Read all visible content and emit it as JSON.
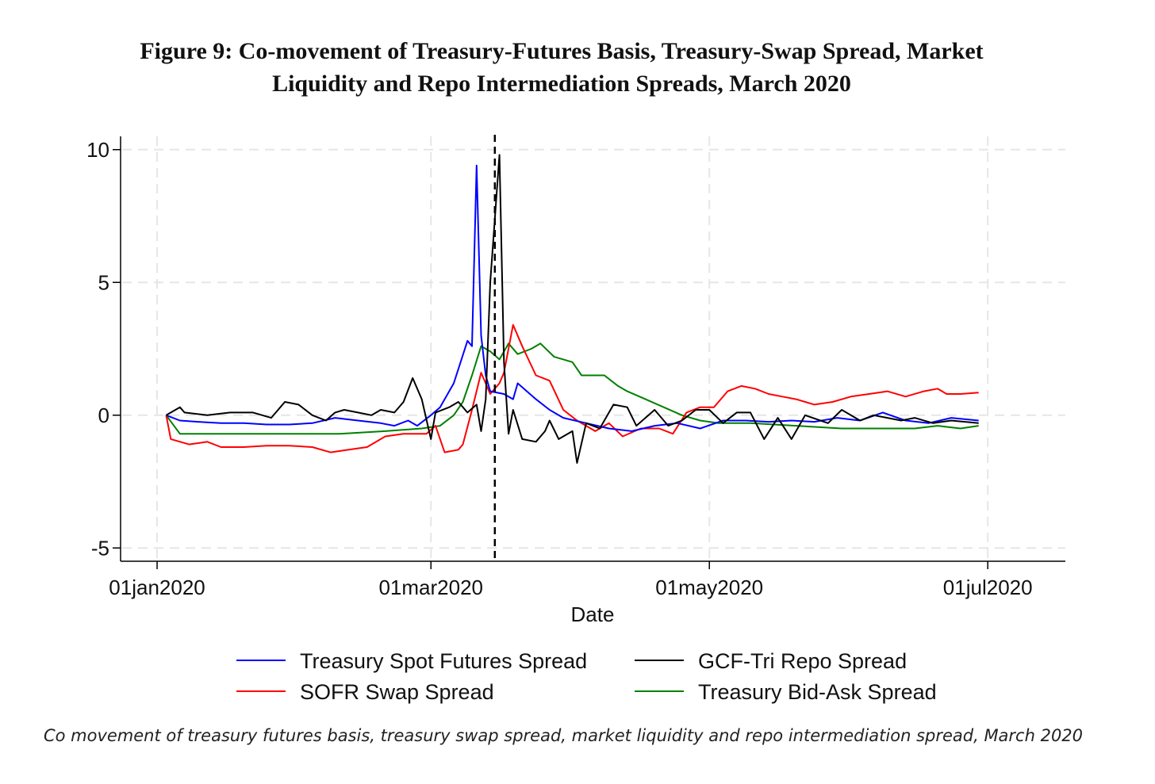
{
  "figure": {
    "title_line1": "Figure 9: Co-movement of Treasury-Futures Basis, Treasury-Swap Spread, Market",
    "title_line2": "Liquidity and Repo Intermediation Spreads, March 2020",
    "caption": "Co movement of treasury futures basis, treasury swap spread, market liquidity and repo intermediation spread, March 2020"
  },
  "chart_data": {
    "type": "line",
    "title": "Figure 9: Co-movement of Treasury-Futures Basis, Treasury-Swap Spread, Market Liquidity and Repo Intermediation Spreads, March 2020",
    "xlabel": "Date",
    "ylabel": "",
    "x_tick_labels": [
      "01jan2020",
      "01mar2020",
      "01may2020",
      "01jul2020"
    ],
    "x_tick_dates": [
      "2020-01-01",
      "2020-03-01",
      "2020-05-01",
      "2020-07-01"
    ],
    "y_tick_labels": [
      "-5",
      "0",
      "5",
      "10"
    ],
    "y_ticks": [
      -5,
      0,
      5,
      10
    ],
    "xlim": [
      "2019-12-24",
      "2020-07-18"
    ],
    "ylim": [
      -5.5,
      10.5
    ],
    "grid": true,
    "legend_position": "bottom",
    "vline_date": "2020-03-15",
    "series": [
      {
        "name": "Treasury Spot Futures Spread",
        "color": "#0000ff",
        "points": [
          [
            "2020-01-03",
            0
          ],
          [
            "2020-01-06",
            -0.2
          ],
          [
            "2020-01-10",
            -0.25
          ],
          [
            "2020-01-15",
            -0.3
          ],
          [
            "2020-01-20",
            -0.3
          ],
          [
            "2020-01-25",
            -0.35
          ],
          [
            "2020-01-30",
            -0.35
          ],
          [
            "2020-02-04",
            -0.3
          ],
          [
            "2020-02-09",
            -0.1
          ],
          [
            "2020-02-14",
            -0.2
          ],
          [
            "2020-02-19",
            -0.3
          ],
          [
            "2020-02-22",
            -0.4
          ],
          [
            "2020-02-25",
            -0.2
          ],
          [
            "2020-02-27",
            -0.4
          ],
          [
            "2020-03-01",
            0
          ],
          [
            "2020-03-03",
            0.3
          ],
          [
            "2020-03-06",
            1.2
          ],
          [
            "2020-03-09",
            2.8
          ],
          [
            "2020-03-10",
            2.6
          ],
          [
            "2020-03-11",
            9.4
          ],
          [
            "2020-03-12",
            3.0
          ],
          [
            "2020-03-13",
            1.5
          ],
          [
            "2020-03-14",
            0.9
          ],
          [
            "2020-03-17",
            0.8
          ],
          [
            "2020-03-19",
            0.6
          ],
          [
            "2020-03-20",
            1.2
          ],
          [
            "2020-03-24",
            0.6
          ],
          [
            "2020-03-27",
            0.2
          ],
          [
            "2020-03-30",
            -0.1
          ],
          [
            "2020-04-04",
            -0.3
          ],
          [
            "2020-04-09",
            -0.5
          ],
          [
            "2020-04-14",
            -0.6
          ],
          [
            "2020-04-19",
            -0.4
          ],
          [
            "2020-04-24",
            -0.3
          ],
          [
            "2020-04-29",
            -0.5
          ],
          [
            "2020-05-04",
            -0.2
          ],
          [
            "2020-05-09",
            -0.2
          ],
          [
            "2020-05-14",
            -0.25
          ],
          [
            "2020-05-19",
            -0.2
          ],
          [
            "2020-05-24",
            -0.25
          ],
          [
            "2020-05-29",
            -0.1
          ],
          [
            "2020-06-03",
            -0.2
          ],
          [
            "2020-06-08",
            0.1
          ],
          [
            "2020-06-13",
            -0.2
          ],
          [
            "2020-06-18",
            -0.3
          ],
          [
            "2020-06-23",
            -0.1
          ],
          [
            "2020-06-29",
            -0.2
          ]
        ]
      },
      {
        "name": "GCF-Tri Repo Spread",
        "color": "#000000",
        "points": [
          [
            "2020-01-03",
            0
          ],
          [
            "2020-01-06",
            0.3
          ],
          [
            "2020-01-07",
            0.1
          ],
          [
            "2020-01-12",
            0.0
          ],
          [
            "2020-01-17",
            0.1
          ],
          [
            "2020-01-22",
            0.1
          ],
          [
            "2020-01-26",
            -0.1
          ],
          [
            "2020-01-29",
            0.5
          ],
          [
            "2020-02-01",
            0.4
          ],
          [
            "2020-02-04",
            0.0
          ],
          [
            "2020-02-07",
            -0.2
          ],
          [
            "2020-02-09",
            0.1
          ],
          [
            "2020-02-11",
            0.2
          ],
          [
            "2020-02-14",
            0.1
          ],
          [
            "2020-02-17",
            0.0
          ],
          [
            "2020-02-19",
            0.2
          ],
          [
            "2020-02-22",
            0.1
          ],
          [
            "2020-02-24",
            0.5
          ],
          [
            "2020-02-26",
            1.4
          ],
          [
            "2020-02-28",
            0.6
          ],
          [
            "2020-03-01",
            -0.9
          ],
          [
            "2020-03-02",
            0.1
          ],
          [
            "2020-03-05",
            0.3
          ],
          [
            "2020-03-07",
            0.5
          ],
          [
            "2020-03-09",
            0.1
          ],
          [
            "2020-03-11",
            0.4
          ],
          [
            "2020-03-12",
            -0.6
          ],
          [
            "2020-03-13",
            0.6
          ],
          [
            "2020-03-14",
            5.0
          ],
          [
            "2020-03-16",
            9.8
          ],
          [
            "2020-03-17",
            2.0
          ],
          [
            "2020-03-18",
            -0.7
          ],
          [
            "2020-03-19",
            0.2
          ],
          [
            "2020-03-21",
            -0.9
          ],
          [
            "2020-03-24",
            -1.0
          ],
          [
            "2020-03-26",
            -0.6
          ],
          [
            "2020-03-27",
            -0.2
          ],
          [
            "2020-03-29",
            -0.9
          ],
          [
            "2020-04-01",
            -0.6
          ],
          [
            "2020-04-02",
            -1.8
          ],
          [
            "2020-04-04",
            -0.3
          ],
          [
            "2020-04-07",
            -0.5
          ],
          [
            "2020-04-10",
            0.4
          ],
          [
            "2020-04-13",
            0.3
          ],
          [
            "2020-04-15",
            -0.4
          ],
          [
            "2020-04-19",
            0.2
          ],
          [
            "2020-04-22",
            -0.4
          ],
          [
            "2020-04-25",
            -0.2
          ],
          [
            "2020-04-28",
            0.2
          ],
          [
            "2020-05-01",
            0.2
          ],
          [
            "2020-05-04",
            -0.3
          ],
          [
            "2020-05-07",
            0.1
          ],
          [
            "2020-05-10",
            0.1
          ],
          [
            "2020-05-13",
            -0.9
          ],
          [
            "2020-05-16",
            -0.1
          ],
          [
            "2020-05-19",
            -0.9
          ],
          [
            "2020-05-22",
            0.0
          ],
          [
            "2020-05-27",
            -0.3
          ],
          [
            "2020-05-30",
            0.2
          ],
          [
            "2020-06-03",
            -0.2
          ],
          [
            "2020-06-06",
            0.0
          ],
          [
            "2020-06-09",
            -0.1
          ],
          [
            "2020-06-12",
            -0.2
          ],
          [
            "2020-06-15",
            -0.1
          ],
          [
            "2020-06-19",
            -0.3
          ],
          [
            "2020-06-23",
            -0.2
          ],
          [
            "2020-06-29",
            -0.3
          ]
        ]
      },
      {
        "name": "SOFR Swap Spread",
        "color": "#ff0000",
        "points": [
          [
            "2020-01-03",
            0
          ],
          [
            "2020-01-04",
            -0.9
          ],
          [
            "2020-01-08",
            -1.1
          ],
          [
            "2020-01-12",
            -1.0
          ],
          [
            "2020-01-15",
            -1.2
          ],
          [
            "2020-01-20",
            -1.2
          ],
          [
            "2020-01-25",
            -1.15
          ],
          [
            "2020-01-30",
            -1.15
          ],
          [
            "2020-02-04",
            -1.2
          ],
          [
            "2020-02-08",
            -1.4
          ],
          [
            "2020-02-12",
            -1.3
          ],
          [
            "2020-02-16",
            -1.2
          ],
          [
            "2020-02-20",
            -0.8
          ],
          [
            "2020-02-24",
            -0.7
          ],
          [
            "2020-02-29",
            -0.7
          ],
          [
            "2020-03-02",
            -0.4
          ],
          [
            "2020-03-04",
            -1.4
          ],
          [
            "2020-03-07",
            -1.3
          ],
          [
            "2020-03-08",
            -1.1
          ],
          [
            "2020-03-10",
            0.2
          ],
          [
            "2020-03-12",
            1.6
          ],
          [
            "2020-03-14",
            0.8
          ],
          [
            "2020-03-16",
            1.2
          ],
          [
            "2020-03-17",
            1.6
          ],
          [
            "2020-03-19",
            3.4
          ],
          [
            "2020-03-21",
            2.6
          ],
          [
            "2020-03-24",
            1.5
          ],
          [
            "2020-03-27",
            1.3
          ],
          [
            "2020-03-30",
            0.2
          ],
          [
            "2020-04-02",
            -0.2
          ],
          [
            "2020-04-06",
            -0.6
          ],
          [
            "2020-04-09",
            -0.3
          ],
          [
            "2020-04-12",
            -0.8
          ],
          [
            "2020-04-16",
            -0.5
          ],
          [
            "2020-04-20",
            -0.5
          ],
          [
            "2020-04-23",
            -0.7
          ],
          [
            "2020-04-26",
            0.1
          ],
          [
            "2020-04-29",
            0.3
          ],
          [
            "2020-05-02",
            0.3
          ],
          [
            "2020-05-05",
            0.9
          ],
          [
            "2020-05-08",
            1.1
          ],
          [
            "2020-05-11",
            1.0
          ],
          [
            "2020-05-14",
            0.8
          ],
          [
            "2020-05-17",
            0.7
          ],
          [
            "2020-05-20",
            0.6
          ],
          [
            "2020-05-24",
            0.4
          ],
          [
            "2020-05-28",
            0.5
          ],
          [
            "2020-06-01",
            0.7
          ],
          [
            "2020-06-05",
            0.8
          ],
          [
            "2020-06-09",
            0.9
          ],
          [
            "2020-06-13",
            0.7
          ],
          [
            "2020-06-17",
            0.9
          ],
          [
            "2020-06-20",
            1.0
          ],
          [
            "2020-06-22",
            0.8
          ],
          [
            "2020-06-25",
            0.8
          ],
          [
            "2020-06-29",
            0.85
          ]
        ]
      },
      {
        "name": "Treasury Bid-Ask Spread",
        "color": "#008000",
        "points": [
          [
            "2020-01-03",
            0
          ],
          [
            "2020-01-06",
            -0.7
          ],
          [
            "2020-01-12",
            -0.7
          ],
          [
            "2020-01-20",
            -0.7
          ],
          [
            "2020-01-30",
            -0.7
          ],
          [
            "2020-02-10",
            -0.7
          ],
          [
            "2020-02-20",
            -0.6
          ],
          [
            "2020-02-28",
            -0.5
          ],
          [
            "2020-03-03",
            -0.4
          ],
          [
            "2020-03-06",
            0.0
          ],
          [
            "2020-03-08",
            0.5
          ],
          [
            "2020-03-10",
            1.5
          ],
          [
            "2020-03-12",
            2.6
          ],
          [
            "2020-03-14",
            2.4
          ],
          [
            "2020-03-16",
            2.1
          ],
          [
            "2020-03-18",
            2.7
          ],
          [
            "2020-03-20",
            2.3
          ],
          [
            "2020-03-23",
            2.5
          ],
          [
            "2020-03-25",
            2.7
          ],
          [
            "2020-03-28",
            2.2
          ],
          [
            "2020-04-01",
            2.0
          ],
          [
            "2020-04-03",
            1.5
          ],
          [
            "2020-04-08",
            1.5
          ],
          [
            "2020-04-11",
            1.1
          ],
          [
            "2020-04-13",
            0.9
          ],
          [
            "2020-04-17",
            0.6
          ],
          [
            "2020-04-21",
            0.3
          ],
          [
            "2020-04-25",
            0.0
          ],
          [
            "2020-04-29",
            -0.2
          ],
          [
            "2020-05-03",
            -0.3
          ],
          [
            "2020-05-10",
            -0.3
          ],
          [
            "2020-05-20",
            -0.4
          ],
          [
            "2020-05-30",
            -0.5
          ],
          [
            "2020-06-07",
            -0.5
          ],
          [
            "2020-06-15",
            -0.5
          ],
          [
            "2020-06-20",
            -0.4
          ],
          [
            "2020-06-25",
            -0.5
          ],
          [
            "2020-06-29",
            -0.4
          ]
        ]
      }
    ]
  }
}
